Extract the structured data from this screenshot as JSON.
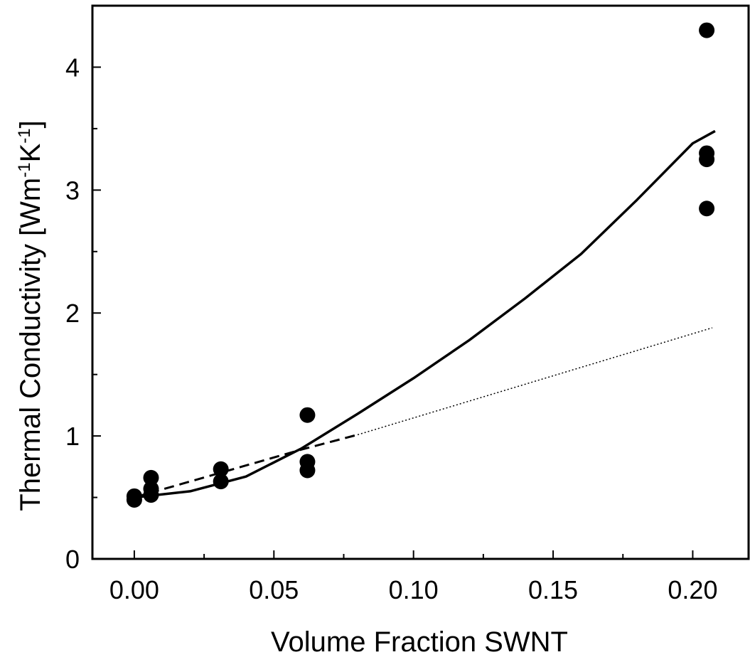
{
  "chart_data": {
    "type": "scatter",
    "title": "",
    "xlabel": "Volume Fraction SWNT",
    "ylabel": {
      "parts": [
        {
          "text": "Thermal Conductivity [Wm",
          "sup": false
        },
        {
          "text": "-1",
          "sup": true
        },
        {
          "text": "K",
          "sup": false
        },
        {
          "text": "-1",
          "sup": true
        },
        {
          "text": "]",
          "sup": false
        }
      ]
    },
    "xlim": [
      -0.015,
      0.22
    ],
    "ylim": [
      0,
      4.5
    ],
    "x_ticks": [
      {
        "value": 0.0,
        "label": "0.00"
      },
      {
        "value": 0.05,
        "label": "0.05"
      },
      {
        "value": 0.1,
        "label": "0.10"
      },
      {
        "value": 0.15,
        "label": "0.15"
      },
      {
        "value": 0.2,
        "label": "0.20"
      }
    ],
    "x_minor_ticks": [
      0.025,
      0.075,
      0.125,
      0.175
    ],
    "y_ticks": [
      {
        "value": 0,
        "label": "0"
      },
      {
        "value": 1,
        "label": "1"
      },
      {
        "value": 2,
        "label": "2"
      },
      {
        "value": 3,
        "label": "3"
      },
      {
        "value": 4,
        "label": "4"
      }
    ],
    "y_minor_ticks": [
      0.5,
      1.5,
      2.5,
      3.5
    ],
    "grid": false,
    "series": [
      {
        "kind": "points",
        "color": "#000000",
        "points": [
          {
            "x": 0.0,
            "y": 0.48
          },
          {
            "x": 0.0,
            "y": 0.51
          },
          {
            "x": 0.006,
            "y": 0.52
          },
          {
            "x": 0.006,
            "y": 0.57
          },
          {
            "x": 0.006,
            "y": 0.66
          },
          {
            "x": 0.031,
            "y": 0.63
          },
          {
            "x": 0.031,
            "y": 0.73
          },
          {
            "x": 0.062,
            "y": 0.72
          },
          {
            "x": 0.062,
            "y": 0.79
          },
          {
            "x": 0.062,
            "y": 1.17
          },
          {
            "x": 0.205,
            "y": 2.85
          },
          {
            "x": 0.205,
            "y": 3.25
          },
          {
            "x": 0.205,
            "y": 3.3
          },
          {
            "x": 0.205,
            "y": 4.3
          }
        ]
      },
      {
        "kind": "line",
        "style": "solid",
        "color": "#000000",
        "points": [
          {
            "x": 0.0,
            "y": 0.5
          },
          {
            "x": 0.02,
            "y": 0.55
          },
          {
            "x": 0.04,
            "y": 0.67
          },
          {
            "x": 0.06,
            "y": 0.9
          },
          {
            "x": 0.08,
            "y": 1.18
          },
          {
            "x": 0.1,
            "y": 1.47
          },
          {
            "x": 0.12,
            "y": 1.78
          },
          {
            "x": 0.14,
            "y": 2.12
          },
          {
            "x": 0.16,
            "y": 2.48
          },
          {
            "x": 0.18,
            "y": 2.92
          },
          {
            "x": 0.2,
            "y": 3.38
          },
          {
            "x": 0.208,
            "y": 3.48
          }
        ]
      },
      {
        "kind": "line",
        "style": "dashed",
        "color": "#000000",
        "points": [
          {
            "x": 0.0,
            "y": 0.5
          },
          {
            "x": 0.02,
            "y": 0.63
          },
          {
            "x": 0.04,
            "y": 0.76
          },
          {
            "x": 0.06,
            "y": 0.89
          },
          {
            "x": 0.08,
            "y": 1.01
          }
        ]
      },
      {
        "kind": "line",
        "style": "dotted",
        "color": "#000000",
        "points": [
          {
            "x": 0.08,
            "y": 1.01
          },
          {
            "x": 0.207,
            "y": 1.88
          }
        ]
      }
    ]
  }
}
